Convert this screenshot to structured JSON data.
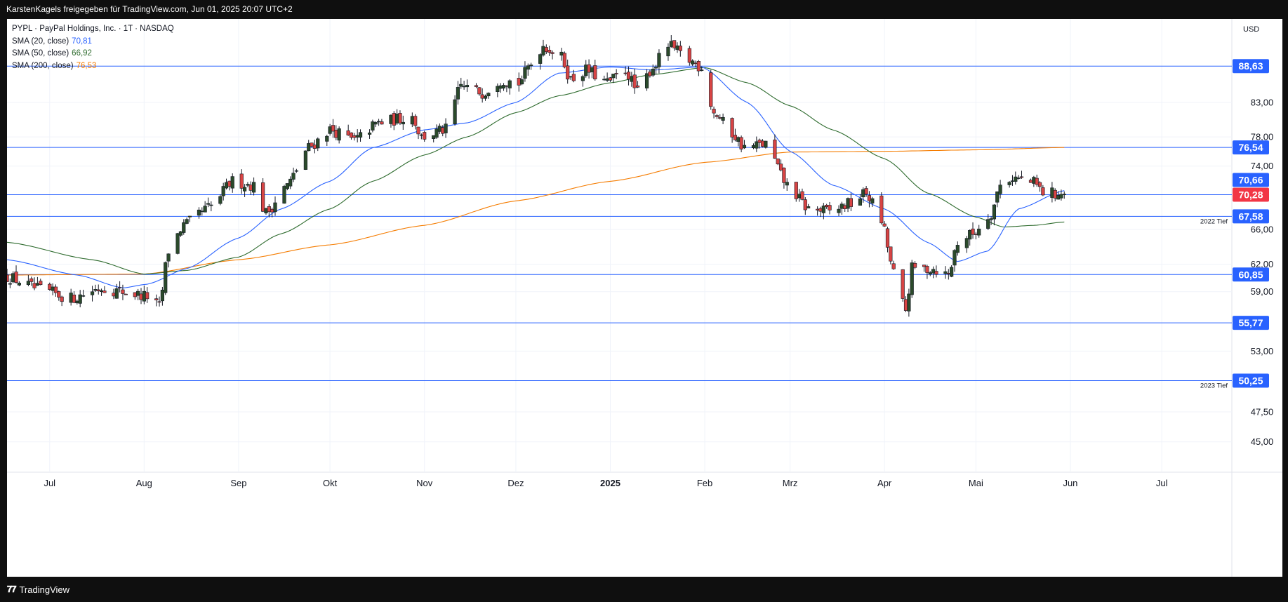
{
  "header": {
    "attribution": "KarstenKagels freigegeben für TradingView.com, Jun 01, 2025 20:07 UTC+2"
  },
  "footer": {
    "brand": "TradingView",
    "logo_icon": "tradingview-logo-icon"
  },
  "legend": {
    "symbol": "PYPL · PayPal Holdings, Inc. · 1T · NASDAQ",
    "sma20": {
      "label": "SMA (20, close)",
      "value": "70,81",
      "color": "#2962ff"
    },
    "sma50": {
      "label": "SMA (50, close)",
      "value": "66,92",
      "color": "#2e6b2e"
    },
    "sma200": {
      "label": "SMA (200, close)",
      "value": "76,53",
      "color": "#f57c00"
    }
  },
  "colors": {
    "up": "#2b4a2b",
    "down": "#d84444",
    "level": "#2962ff",
    "badge": "#2962ff",
    "price_badge": "#f23645"
  },
  "chart_data": {
    "type": "candlestick",
    "currency": "USD",
    "y_axis_scale": "log",
    "ylim": [
      42.6,
      96.5
    ],
    "y_ticks": [
      {
        "value": 83,
        "label": "83,00"
      },
      {
        "value": 78,
        "label": "78,00"
      },
      {
        "value": 74,
        "label": "74,00"
      },
      {
        "value": 66,
        "label": "66,00"
      },
      {
        "value": 62,
        "label": "62,00"
      },
      {
        "value": 59,
        "label": "59,00"
      },
      {
        "value": 53,
        "label": "53,00"
      },
      {
        "value": 47.5,
        "label": "47,50"
      },
      {
        "value": 45,
        "label": "45,00"
      }
    ],
    "x_labels": [
      {
        "date": "2024-07-01",
        "label": "Jul",
        "bold": false
      },
      {
        "date": "2024-08-01",
        "label": "Aug",
        "bold": false
      },
      {
        "date": "2024-09-01",
        "label": "Sep",
        "bold": false
      },
      {
        "date": "2024-10-01",
        "label": "Okt",
        "bold": false
      },
      {
        "date": "2024-11-01",
        "label": "Nov",
        "bold": false
      },
      {
        "date": "2024-12-01",
        "label": "Dez",
        "bold": false
      },
      {
        "date": "2025-01-01",
        "label": "2025",
        "bold": true
      },
      {
        "date": "2025-02-01",
        "label": "Feb",
        "bold": false
      },
      {
        "date": "2025-03-01",
        "label": "Mrz",
        "bold": false
      },
      {
        "date": "2025-04-01",
        "label": "Apr",
        "bold": false
      },
      {
        "date": "2025-05-01",
        "label": "Mai",
        "bold": false
      },
      {
        "date": "2025-06-01",
        "label": "Jun",
        "bold": false
      },
      {
        "date": "2025-07-01",
        "label": "Jul",
        "bold": false
      }
    ],
    "x_range": [
      "2024-06-17",
      "2025-07-24"
    ],
    "levels": [
      {
        "value": 88.63,
        "label": "88,63",
        "note": ""
      },
      {
        "value": 76.54,
        "label": "76,54",
        "note": ""
      },
      {
        "value": 70.28,
        "label": "70,28",
        "note": "",
        "is_price": true
      },
      {
        "value": 67.58,
        "label": "67,58",
        "note": "2022 Tief"
      },
      {
        "value": 60.85,
        "label": "60,85",
        "note": ""
      },
      {
        "value": 55.77,
        "label": "55,77",
        "note": ""
      },
      {
        "value": 50.25,
        "label": "50,25",
        "note": "2023 Tief"
      }
    ],
    "last_badges": [
      {
        "value": 70.66,
        "label": "70,66",
        "color": "#2962ff"
      },
      {
        "value": 70.28,
        "label": "70,28",
        "color": "#f23645"
      }
    ],
    "price_anchors": [
      [
        "2024-06-17",
        60.6
      ],
      [
        "2024-06-28",
        59.2
      ],
      [
        "2024-07-08",
        58.3
      ],
      [
        "2024-07-18",
        59.4
      ],
      [
        "2024-07-25",
        59.0
      ],
      [
        "2024-08-02",
        58.5
      ],
      [
        "2024-08-06",
        57.4
      ],
      [
        "2024-08-09",
        63.5
      ],
      [
        "2024-08-14",
        66.5
      ],
      [
        "2024-08-23",
        68.8
      ],
      [
        "2024-08-30",
        72.0
      ],
      [
        "2024-09-06",
        71.5
      ],
      [
        "2024-09-10",
        68.0
      ],
      [
        "2024-09-17",
        71.5
      ],
      [
        "2024-09-24",
        76.5
      ],
      [
        "2024-10-01",
        79.0
      ],
      [
        "2024-10-09",
        77.5
      ],
      [
        "2024-10-17",
        80.0
      ],
      [
        "2024-10-28",
        81.0
      ],
      [
        "2024-10-31",
        78.0
      ],
      [
        "2024-11-08",
        79.0
      ],
      [
        "2024-11-13",
        85.5
      ],
      [
        "2024-11-20",
        84.5
      ],
      [
        "2024-11-26",
        86.5
      ],
      [
        "2024-12-02",
        86.0
      ],
      [
        "2024-12-06",
        89.0
      ],
      [
        "2024-12-10",
        92.0
      ],
      [
        "2024-12-16",
        90.0
      ],
      [
        "2024-12-19",
        86.5
      ],
      [
        "2024-12-24",
        88.0
      ],
      [
        "2024-12-31",
        86.0
      ],
      [
        "2025-01-06",
        88.0
      ],
      [
        "2025-01-10",
        84.5
      ],
      [
        "2025-01-15",
        88.5
      ],
      [
        "2025-01-20",
        92.0
      ],
      [
        "2025-01-27",
        89.5
      ],
      [
        "2025-01-31",
        88.5
      ],
      [
        "2025-02-04",
        81.5
      ],
      [
        "2025-02-10",
        78.5
      ],
      [
        "2025-02-14",
        76.5
      ],
      [
        "2025-02-21",
        77.0
      ],
      [
        "2025-02-28",
        71.5
      ],
      [
        "2025-03-07",
        68.5
      ],
      [
        "2025-03-14",
        68.2
      ],
      [
        "2025-03-21",
        69.2
      ],
      [
        "2025-03-26",
        70.5
      ],
      [
        "2025-03-31",
        67.0
      ],
      [
        "2025-04-04",
        61.0
      ],
      [
        "2025-04-08",
        57.0
      ],
      [
        "2025-04-10",
        61.5
      ],
      [
        "2025-04-17",
        61.5
      ],
      [
        "2025-04-22",
        60.8
      ],
      [
        "2025-04-25",
        64.5
      ],
      [
        "2025-04-30",
        65.5
      ],
      [
        "2025-05-06",
        68.0
      ],
      [
        "2025-05-09",
        71.5
      ],
      [
        "2025-05-13",
        72.5
      ],
      [
        "2025-05-20",
        71.8
      ],
      [
        "2025-05-23",
        70.6
      ],
      [
        "2025-05-30",
        70.3
      ]
    ],
    "sma20_anchors": [
      [
        "2024-06-17",
        62.5
      ],
      [
        "2024-07-10",
        60.8
      ],
      [
        "2024-07-25",
        59.4
      ],
      [
        "2024-08-02",
        59.8
      ],
      [
        "2024-08-15",
        61.5
      ],
      [
        "2024-09-01",
        65.0
      ],
      [
        "2024-09-15",
        68.5
      ],
      [
        "2024-10-01",
        72.0
      ],
      [
        "2024-10-15",
        76.5
      ],
      [
        "2024-11-01",
        79.0
      ],
      [
        "2024-11-15",
        80.0
      ],
      [
        "2024-12-01",
        83.0
      ],
      [
        "2024-12-15",
        87.5
      ],
      [
        "2025-01-01",
        88.5
      ],
      [
        "2025-01-15",
        88.0
      ],
      [
        "2025-01-31",
        88.5
      ],
      [
        "2025-02-15",
        83.0
      ],
      [
        "2025-03-01",
        76.0
      ],
      [
        "2025-03-15",
        71.5
      ],
      [
        "2025-04-01",
        68.5
      ],
      [
        "2025-04-15",
        64.5
      ],
      [
        "2025-04-25",
        62.3
      ],
      [
        "2025-05-05",
        63.5
      ],
      [
        "2025-05-15",
        68.5
      ],
      [
        "2025-05-30",
        70.8
      ]
    ],
    "sma50_anchors": [
      [
        "2024-06-17",
        64.5
      ],
      [
        "2024-07-15",
        62.5
      ],
      [
        "2024-08-01",
        60.9
      ],
      [
        "2024-08-15",
        61.3
      ],
      [
        "2024-09-01",
        62.8
      ],
      [
        "2024-09-15",
        65.5
      ],
      [
        "2024-10-01",
        68.5
      ],
      [
        "2024-10-15",
        72.0
      ],
      [
        "2024-11-01",
        75.5
      ],
      [
        "2024-11-15",
        78.0
      ],
      [
        "2024-12-01",
        81.5
      ],
      [
        "2024-12-15",
        84.0
      ],
      [
        "2025-01-01",
        86.0
      ],
      [
        "2025-01-15",
        87.3
      ],
      [
        "2025-02-01",
        88.4
      ],
      [
        "2025-02-15",
        86.0
      ],
      [
        "2025-03-01",
        82.5
      ],
      [
        "2025-03-15",
        79.0
      ],
      [
        "2025-04-01",
        75.0
      ],
      [
        "2025-04-15",
        70.5
      ],
      [
        "2025-05-01",
        67.5
      ],
      [
        "2025-05-10",
        66.3
      ],
      [
        "2025-05-20",
        66.5
      ],
      [
        "2025-05-30",
        66.9
      ]
    ],
    "sma200_anchors": [
      [
        "2024-06-17",
        60.8
      ],
      [
        "2024-08-01",
        60.9
      ],
      [
        "2024-09-01",
        62.5
      ],
      [
        "2024-10-01",
        64.2
      ],
      [
        "2024-11-01",
        66.5
      ],
      [
        "2024-12-01",
        69.5
      ],
      [
        "2025-01-01",
        72.0
      ],
      [
        "2025-02-01",
        74.5
      ],
      [
        "2025-03-01",
        75.9
      ],
      [
        "2025-04-01",
        76.0
      ],
      [
        "2025-05-01",
        76.2
      ],
      [
        "2025-05-30",
        76.53
      ]
    ]
  }
}
